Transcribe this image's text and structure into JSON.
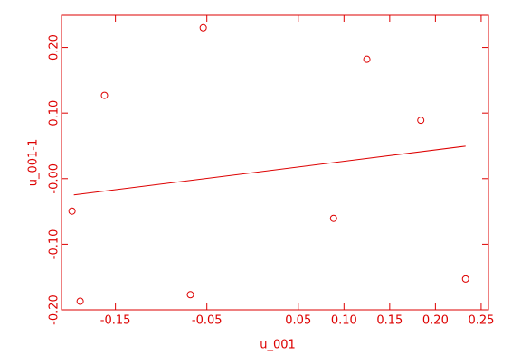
{
  "chart_data": {
    "type": "scatter",
    "xlabel": "u_001",
    "ylabel": "u_001-1",
    "color": "#dd0000",
    "x": [
      -0.1975,
      -0.1886,
      -0.162,
      -0.054,
      -0.068,
      0.0886,
      0.125,
      0.184,
      0.233
    ],
    "values": [
      -0.0495,
      -0.187,
      0.127,
      0.23,
      -0.177,
      -0.0605,
      0.182,
      0.089,
      -0.153
    ],
    "fit": {
      "x": [
        -0.1955,
        0.233
      ],
      "y": [
        -0.0248,
        0.0495
      ]
    },
    "xlim": [
      -0.209,
      0.258
    ],
    "ylim": [
      -0.2,
      0.249
    ],
    "xticks": [
      -0.15,
      -0.05,
      0.05,
      {
        "value": 0.1,
        "label": "0.10"
      },
      0.15,
      {
        "value": 0.2,
        "label": "0.20"
      },
      0.25
    ],
    "yticks": [
      {
        "value": -0.2,
        "label": "-0.20"
      },
      {
        "value": -0.1,
        "label": "-0.10"
      },
      {
        "value": 0,
        "label": "-0.00"
      },
      {
        "value": 0.1,
        "label": "0.10"
      },
      {
        "value": 0.2,
        "label": "0.20"
      }
    ]
  }
}
